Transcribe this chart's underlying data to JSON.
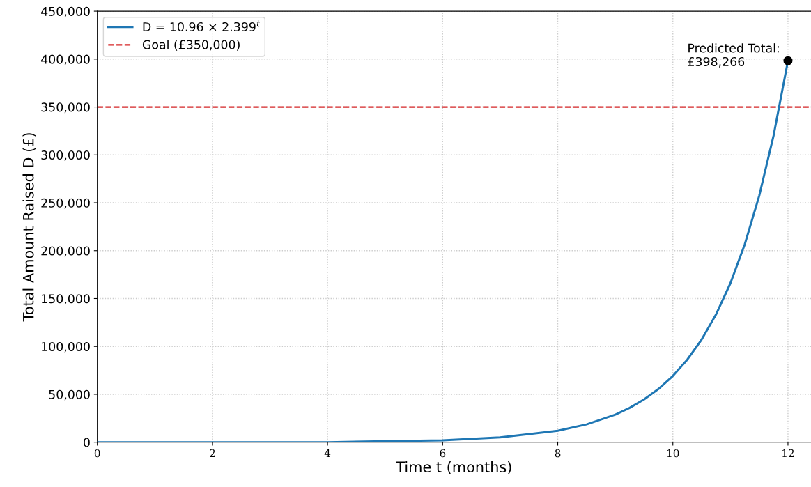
{
  "chart_data": {
    "type": "line",
    "xlabel": "Time t (months)",
    "ylabel": "Total Amount Raised D (£)",
    "series": [
      {
        "name": "D = 10.96 × 2.399$^{t}$",
        "color": "#1f77b4",
        "x": [
          0,
          1,
          2,
          3,
          4,
          5,
          6,
          7,
          8,
          8.5,
          9,
          9.25,
          9.5,
          9.75,
          10,
          10.25,
          10.5,
          10.75,
          11,
          11.25,
          11.5,
          11.75,
          12
        ],
        "values": [
          0,
          0,
          0,
          0,
          0,
          1000,
          2000,
          5000,
          12000,
          18600,
          28800,
          35900,
          44700,
          55600,
          69200,
          86200,
          107200,
          133400,
          166000,
          206700,
          257200,
          320100,
          398266
        ]
      },
      {
        "type": "scatter",
        "color": "#000000",
        "x": [
          12
        ],
        "values": [
          398266
        ],
        "marker": "circle"
      }
    ],
    "ref_lines": [
      {
        "axis": "y",
        "value": 350000,
        "label": "Goal (£350,000)",
        "color": "#d62728",
        "line_style": "dashed"
      }
    ],
    "annotations": [
      {
        "text": "Predicted Total:\n£398,266",
        "x": 12,
        "y": 398266
      }
    ],
    "xlim": [
      0,
      12.4
    ],
    "xticks": [
      0,
      2,
      4,
      6,
      8,
      10,
      12
    ],
    "ylim": [
      0,
      450000
    ],
    "yticks": [
      {
        "value": 0,
        "label": "0"
      },
      {
        "value": 50000,
        "label": "50,000"
      },
      {
        "value": 100000,
        "label": "100,000"
      },
      {
        "value": 150000,
        "label": "150,000"
      },
      {
        "value": 200000,
        "label": "200,000"
      },
      {
        "value": 250000,
        "label": "250,000"
      },
      {
        "value": 300000,
        "label": "300,000"
      },
      {
        "value": 350000,
        "label": "350,000"
      },
      {
        "value": 400000,
        "label": "400,000"
      },
      {
        "value": 450000,
        "label": "450,000"
      }
    ],
    "grid": true,
    "legend": "top left",
    "marker": "none",
    "line_style": "solid"
  }
}
